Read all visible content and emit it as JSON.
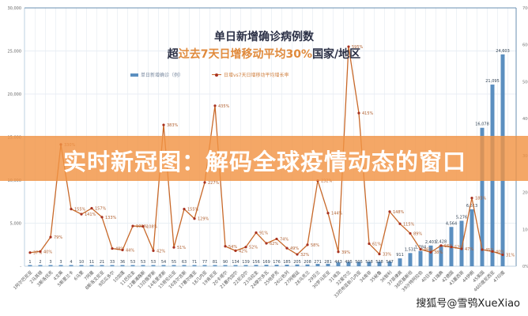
{
  "title_line1": "单日新增确诊病例数",
  "title_line2_pre": "超",
  "title_line2_highlight": "过去7天日增移动平均30%",
  "title_line2_post": "国家/地区",
  "banner": "实时新冠图：解码全球疫情动态的窗口",
  "watermark": "搜狐号@雪鸮XueXiao",
  "colors": {
    "bar": "#5b8fc0",
    "line": "#c8692a",
    "marker": "#a83220",
    "banner": "#f19444",
    "highlight": "#e08a3c"
  },
  "chart_data": {
    "type": "bar+line",
    "legend": [
      "单日新增确诊（例）",
      "日增vs7天日增移动平均增长率"
    ],
    "legend_position": "top",
    "grid": true,
    "categories": [
      "1阿尔巴尼亚",
      "2马其顿",
      "3斯洛伐克",
      "4文莱",
      "5斯里兰卡",
      "6马里",
      "7阿曼",
      "8斯洛文尼亚",
      "9厄瓜多尔",
      "10加蓬",
      "11巴拉圭",
      "12塞浦路斯",
      "13白俄罗斯",
      "14毛里求斯",
      "15哥伦比亚",
      "16吉尔吉斯",
      "17塞尔维亚",
      "18几内亚",
      "19肯尼亚",
      "20卡塔尔",
      "21塞内加尔",
      "22尼泊尔",
      "23乌拉圭",
      "24摩尔多瓦",
      "25哈萨克",
      "26以色列",
      "27阿根廷",
      "28乌克兰",
      "29芬兰",
      "30罗马尼亚",
      "31埃及",
      "32爱尔兰",
      "33巴布亚新几内亚",
      "34南非",
      "35秘鲁",
      "36智利",
      "37菲律宾",
      "38巴基斯坦",
      "39沙特阿拉伯",
      "40日本",
      "41瑞典",
      "42德国",
      "43墨西哥",
      "44伊朗",
      "45英国",
      "46印度尼西亚",
      "47印度"
    ],
    "y_left": {
      "min": 0,
      "max": 30000,
      "ticks": [
        "-",
        "5,000",
        "10,000",
        "15,000",
        "20,000",
        "25,000",
        "30,000"
      ]
    },
    "y_right": {
      "min": 0,
      "max": 700,
      "ticks": [
        "0%",
        "100%",
        "200%",
        "300%",
        "400%",
        "500%",
        "600%",
        "700%"
      ]
    },
    "series": [
      {
        "name": "单日新增确诊（例）",
        "type": "bar",
        "axis": "left",
        "values": [
          1,
          2,
          3,
          3,
          4,
          10,
          11,
          21,
          33,
          36,
          53,
          53,
          53,
          54,
          55,
          63,
          71,
          77,
          81,
          90,
          134,
          139,
          156,
          169,
          176,
          185,
          205,
          208,
          271,
          281,
          443,
          495,
          505,
          518,
          528,
          547,
          911,
          1531,
          1784,
          2403,
          2428,
          4564,
          5276,
          6613,
          16078,
          21095,
          24603
        ],
        "labels": [
          "1",
          "2",
          "3",
          "3",
          "4",
          "10",
          "11",
          "21",
          "33",
          "36",
          "53",
          "53",
          "53",
          "54",
          "55",
          "63",
          "71",
          "77",
          "81",
          "90",
          "134",
          "139",
          "156",
          "169",
          "176",
          "185",
          "205",
          "208",
          "271",
          "281",
          "443",
          "495",
          "505",
          "518",
          "528",
          "547",
          "911",
          "1,531",
          "1,784",
          "2,403",
          "2,428",
          "4,564",
          "5,276",
          "6,613",
          "16,078",
          "21,095",
          "24,603"
        ]
      },
      {
        "name": "日增vs7天日增移动平均增长率",
        "type": "line",
        "axis": "right",
        "values": [
          37,
          40,
          79,
          330,
          155,
          141,
          157,
          133,
          48,
          44,
          109,
          108,
          42,
          383,
          51,
          155,
          129,
          227,
          435,
          54,
          42,
          52,
          91,
          62,
          74,
          49,
          32,
          58,
          232,
          144,
          39,
          595,
          415,
          61,
          33,
          148,
          115,
          89,
          46,
          38,
          56,
          52,
          47,
          185,
          45,
          40,
          31
        ]
      }
    ]
  }
}
